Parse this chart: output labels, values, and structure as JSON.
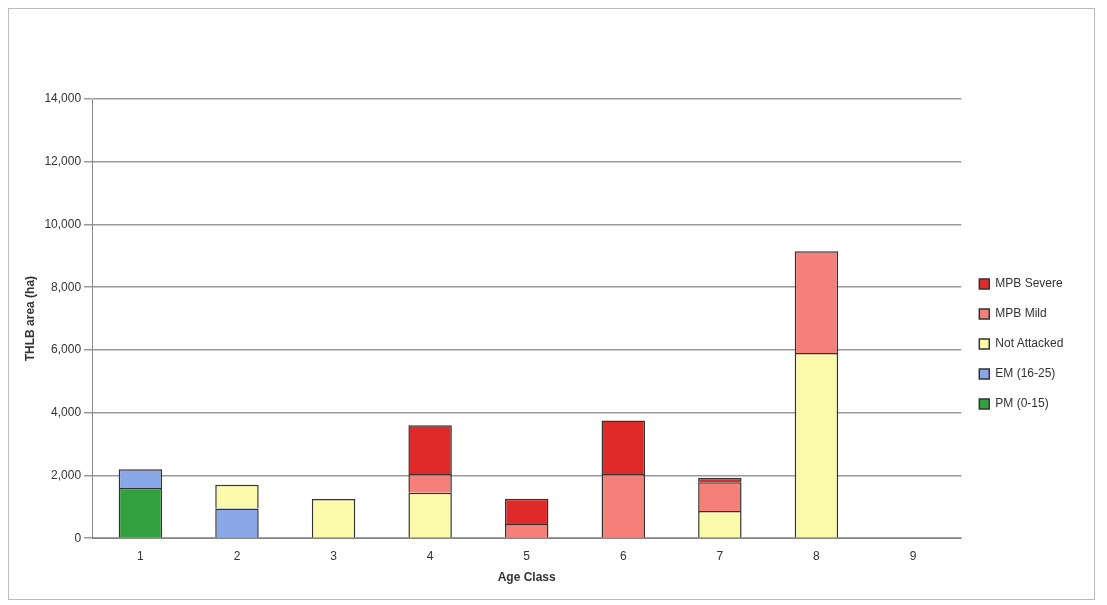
{
  "chart_data": {
    "type": "bar",
    "stacked": true,
    "xlabel": "Age Class",
    "ylabel": "THLB area (ha)",
    "categories": [
      "1",
      "2",
      "3",
      "4",
      "5",
      "6",
      "7",
      "8",
      "9"
    ],
    "series": [
      {
        "name": "PM (0-15)",
        "color": "#33a040",
        "values": [
          1600,
          0,
          0,
          0,
          0,
          0,
          0,
          0,
          0
        ]
      },
      {
        "name": "EM (16-25)",
        "color": "#8aa8e8",
        "values": [
          600,
          950,
          0,
          0,
          0,
          0,
          0,
          0,
          0
        ]
      },
      {
        "name": "Not Attacked",
        "color": "#fafaaa",
        "values": [
          0,
          750,
          1250,
          1450,
          0,
          0,
          870,
          5900,
          0
        ]
      },
      {
        "name": "MPB Mild",
        "color": "#f5807a",
        "values": [
          0,
          0,
          0,
          600,
          450,
          2050,
          910,
          3250,
          0
        ]
      },
      {
        "name": "MPB Severe",
        "color": "#e02a2a",
        "values": [
          0,
          0,
          0,
          1550,
          810,
          1700,
          150,
          0,
          0
        ]
      }
    ],
    "ylim": [
      0,
      14000
    ],
    "yticks": [
      {
        "value": 0,
        "label": "0"
      },
      {
        "value": 2000,
        "label": "2,000"
      },
      {
        "value": 4000,
        "label": "4,000"
      },
      {
        "value": 6000,
        "label": "6,000"
      },
      {
        "value": 8000,
        "label": "8,000"
      },
      {
        "value": 10000,
        "label": "10,000"
      },
      {
        "value": 12000,
        "label": "12,000"
      },
      {
        "value": 14000,
        "label": "14,000"
      }
    ],
    "grid": "y",
    "legend": "right"
  }
}
